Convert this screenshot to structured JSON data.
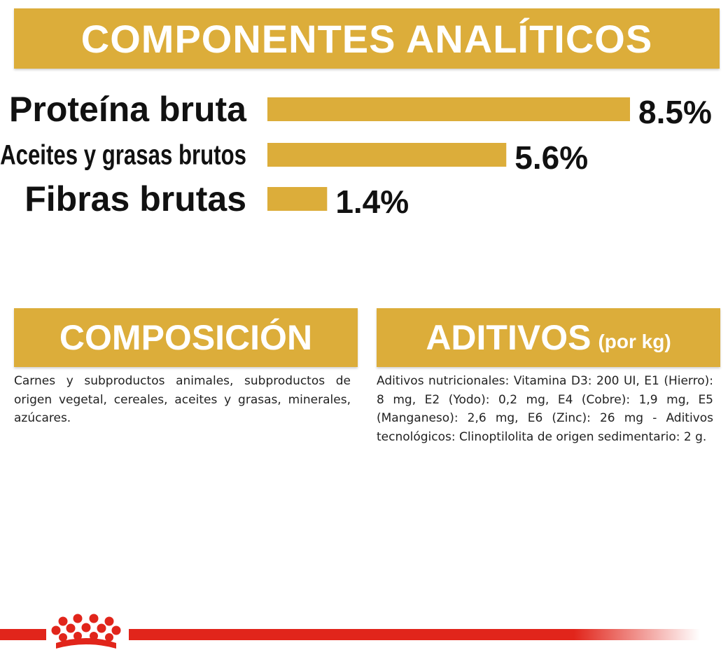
{
  "header": {
    "title": "COMPONENTES ANALÍTICOS"
  },
  "chart_data": {
    "type": "bar",
    "orientation": "horizontal",
    "categories": [
      "Proteína bruta",
      "Aceites y grasas brutos",
      "Fibras brutas"
    ],
    "values": [
      8.5,
      5.6,
      1.4
    ],
    "value_labels": [
      "8.5%",
      "5.6%",
      "1.4%"
    ],
    "xlim": [
      0,
      8.5
    ],
    "grid": false,
    "legend": "none",
    "bar_color": "#dcad3a"
  },
  "composicion": {
    "title": "COMPOSICIÓN",
    "text": "Carnes y subproductos animales, subproductos de origen vegetal, cereales, aceites y grasas, minerales, azúcares."
  },
  "aditivos": {
    "title": "ADITIVOS",
    "subtitle": "(por kg)",
    "text": "Aditivos nutricionales: Vitamina D3: 200 UI, E1 (Hierro): 8 mg, E2 (Yodo): 0,2 mg, E4 (Cobre): 1,9 mg, E5 (Manganeso): 2,6 mg, E6 (Zinc): 26 mg - Aditivos tecnológicos: Clinoptilolita de origen sedimentario: 2 g."
  },
  "colors": {
    "accent": "#dcad3a",
    "brand_red": "#e1251b",
    "text": "#111111"
  },
  "logo": {
    "icon": "royal-canin-crown-icon"
  }
}
